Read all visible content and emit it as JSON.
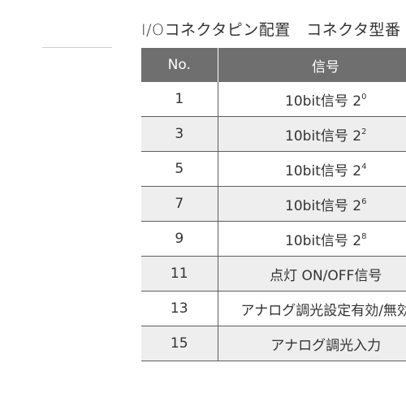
{
  "title": "I/Oコネクタピン配置　コネクタ型番",
  "table": {
    "headers": {
      "no": "No.",
      "signal": "信号"
    },
    "rows": [
      {
        "no": "1",
        "signal": "10bit信号 2",
        "exp": "0"
      },
      {
        "no": "3",
        "signal": "10bit信号 2",
        "exp": "2"
      },
      {
        "no": "5",
        "signal": "10bit信号 2",
        "exp": "4"
      },
      {
        "no": "7",
        "signal": "10bit信号 2",
        "exp": "6"
      },
      {
        "no": "9",
        "signal": "10bit信号 2",
        "exp": "8"
      },
      {
        "no": "11",
        "signal": "点灯 ON/OFF信号",
        "exp": ""
      },
      {
        "no": "13",
        "signal": "アナログ調光設定有効/無効",
        "exp": ""
      },
      {
        "no": "15",
        "signal": "アナログ調光入力",
        "exp": ""
      }
    ]
  }
}
